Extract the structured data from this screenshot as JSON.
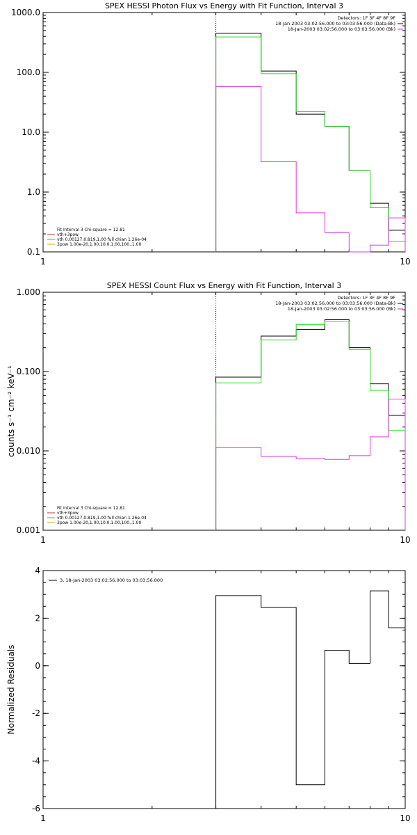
{
  "chart_data": [
    {
      "type": "line",
      "title": "SPEX HESSI Photon Flux vs Energy with Fit Function, Interval 3",
      "xscale": "log",
      "yscale": "log",
      "xlim": [
        1,
        10
      ],
      "ylim": [
        0.1,
        1000
      ],
      "x_ticks": [
        "1",
        "10"
      ],
      "y_ticks": [
        "0.1",
        "1.0",
        "10.0",
        "100.0",
        "1000.0"
      ],
      "y_tick_values": [
        0.1,
        1,
        10,
        100,
        1000
      ],
      "marker_x": 3,
      "info_right": [
        "Detectors: 1F 3F 4F 8F 9F",
        "18-Jan-2003 03:02:56.000 to 03:03:56.000 (Data-Bk)",
        "18-Jan-2003 03:02:56.000 to 03:03:56.000 (Bk)"
      ],
      "info_right_colors": [
        "#000000",
        "#000000",
        "#cc33cc"
      ],
      "info_left": [
        "Fit Interval 3   Chi-square = 12.81",
        "vth+3pow",
        "vth 0.00127,0.819,1.00  full chian 1.26e-04",
        "3pow 1.00e-20,1.00,10.0,1.00,100.,1.00"
      ],
      "info_left_colors": [
        "#000000",
        "#cc3333",
        "#22cc22",
        "#ddaa00"
      ],
      "edges": [
        3,
        4,
        5,
        6,
        7,
        8,
        9,
        10
      ],
      "series": [
        {
          "color": "#000000",
          "values": [
            450,
            105,
            20,
            12.5,
            2.3,
            0.65,
            0.23
          ]
        },
        {
          "color": "#22dd22",
          "values": [
            390,
            95,
            22,
            12.5,
            2.3,
            0.55,
            0.15
          ]
        },
        {
          "color": "#dd33dd",
          "values": [
            58,
            3.2,
            0.45,
            0.21,
            0.09,
            0.13,
            0.37
          ]
        }
      ]
    },
    {
      "type": "line",
      "title": "SPEX HESSI Count Flux vs Energy with Fit Function, Interval 3",
      "xscale": "log",
      "yscale": "log",
      "xlim": [
        1,
        10
      ],
      "ylim": [
        0.001,
        1
      ],
      "x_ticks": [
        "1",
        "10"
      ],
      "y_ticks": [
        "0.001",
        "0.010",
        "0.100",
        "1.000"
      ],
      "y_tick_values": [
        0.001,
        0.01,
        0.1,
        1
      ],
      "ylabel": "counts s⁻¹ cm⁻² keV⁻¹",
      "marker_x": 3,
      "info_right": [
        "Detectors: 1F 3F 4F 8F 9F",
        "18-Jan-2003 03:02:56.000 to 03:03:56.000 (Data-Bk)",
        "18-Jan-2003 03:02:56.000 to 03:03:56.000 (Bk)"
      ],
      "info_right_colors": [
        "#000000",
        "#000000",
        "#cc33cc"
      ],
      "info_left": [
        "Fit Interval 3   Chi-square = 12.81",
        "vth+3pow",
        "vth 0.00127,0.819,1.00  full chian 1.26e-04",
        "3pow 1.00e-20,1.00,10.0,1.00,100.,1.00"
      ],
      "info_left_colors": [
        "#000000",
        "#cc3333",
        "#22cc22",
        "#ddaa00"
      ],
      "edges": [
        3,
        4,
        5,
        6,
        7,
        8,
        9,
        10
      ],
      "series": [
        {
          "color": "#000000",
          "values": [
            0.085,
            0.28,
            0.34,
            0.45,
            0.2,
            0.07,
            0.028
          ]
        },
        {
          "color": "#22dd22",
          "values": [
            0.072,
            0.25,
            0.39,
            0.43,
            0.19,
            0.058,
            0.018
          ]
        },
        {
          "color": "#dd33dd",
          "values": [
            0.011,
            0.0085,
            0.008,
            0.0078,
            0.0087,
            0.015,
            0.045
          ]
        }
      ]
    },
    {
      "type": "line",
      "title": "",
      "xscale": "log",
      "yscale": "linear",
      "xlim": [
        1,
        10
      ],
      "ylim": [
        -6,
        4
      ],
      "x_ticks": [
        "1",
        "10"
      ],
      "y_ticks": [
        "-6",
        "-4",
        "-2",
        "0",
        "2",
        "4"
      ],
      "y_tick_values": [
        -6,
        -4,
        -2,
        0,
        2,
        4
      ],
      "ylabel": "Normalized Residuals",
      "legend": "3, 18-Jan-2003 03:02:56.000 to 03:03:56.000",
      "edges": [
        3,
        4,
        5,
        6,
        7,
        8,
        9,
        10
      ],
      "series": [
        {
          "color": "#000000",
          "values": [
            2.95,
            2.45,
            -5.0,
            0.65,
            0.1,
            3.15,
            1.6
          ]
        }
      ]
    }
  ]
}
